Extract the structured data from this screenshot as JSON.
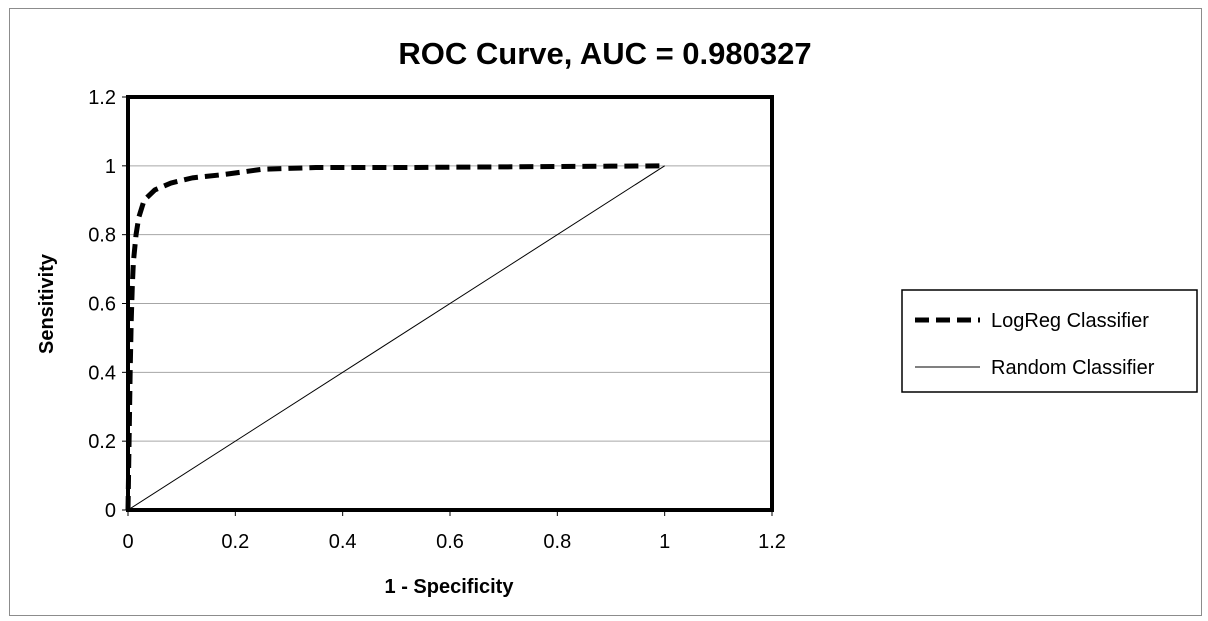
{
  "chart_data": {
    "type": "line",
    "title": "ROC Curve, AUC = 0.980327",
    "xlabel": "1 - Specificity",
    "ylabel": "Sensitivity",
    "xlim": [
      0,
      1.2
    ],
    "ylim": [
      0,
      1.2
    ],
    "x_ticks": [
      "0",
      "0.2",
      "0.4",
      "0.6",
      "0.8",
      "1",
      "1.2"
    ],
    "y_ticks": [
      "0",
      "0.2",
      "0.4",
      "0.6",
      "0.8",
      "1",
      "1.2"
    ],
    "grid": "horizontal",
    "legend_position": "right",
    "series": [
      {
        "name": "LogReg Classifier",
        "style": "dashed-thick",
        "color": "#000000",
        "x": [
          0,
          0.002,
          0.004,
          0.006,
          0.008,
          0.01,
          0.015,
          0.02,
          0.03,
          0.05,
          0.08,
          0.12,
          0.18,
          0.25,
          0.35,
          0.5,
          0.7,
          0.9,
          1.0
        ],
        "y": [
          0,
          0.2,
          0.4,
          0.55,
          0.65,
          0.72,
          0.8,
          0.85,
          0.9,
          0.93,
          0.95,
          0.965,
          0.975,
          0.99,
          0.995,
          0.995,
          0.997,
          0.999,
          1.0
        ]
      },
      {
        "name": "Random Classifier",
        "style": "solid-thin",
        "color": "#000000",
        "x": [
          0,
          1
        ],
        "y": [
          0,
          1
        ]
      }
    ]
  }
}
